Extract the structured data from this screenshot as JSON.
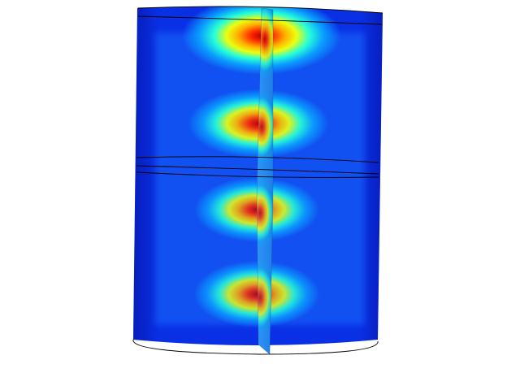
{
  "plot": {
    "colormap": "jet",
    "colormap_stops": [
      "#00008f",
      "#0040ff",
      "#00ffff",
      "#ffff00",
      "#ff3000",
      "#800000"
    ],
    "background": "#ffffff",
    "outline_color": "#000000",
    "hotspot_count": 4,
    "hotspot_levels": [
      1.0,
      0.84,
      0.72,
      0.66
    ]
  }
}
